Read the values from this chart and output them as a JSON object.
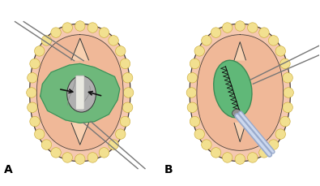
{
  "fig_width": 3.95,
  "fig_height": 2.3,
  "dpi": 100,
  "background_color": "#ffffff",
  "label_A": "A",
  "label_B": "B",
  "label_fontsize": 10,
  "colors": {
    "skin_pink": "#f0b898",
    "skin_light": "#f5c8b0",
    "fatty_tissue": "#f2e090",
    "fatty_outline": "#c8a830",
    "dura_green": "#60b878",
    "dura_green_dark": "#3d8a55",
    "spinal_cord_gray": "#b0b0b0",
    "outline": "#555555",
    "dark_outline": "#333333",
    "suture": "#111111",
    "needle_gray": "#99aacc",
    "needle_light": "#ccd8ee",
    "line_gray": "#777777",
    "arrow_color": "#111111",
    "white_strip": "#e8e8e0"
  }
}
